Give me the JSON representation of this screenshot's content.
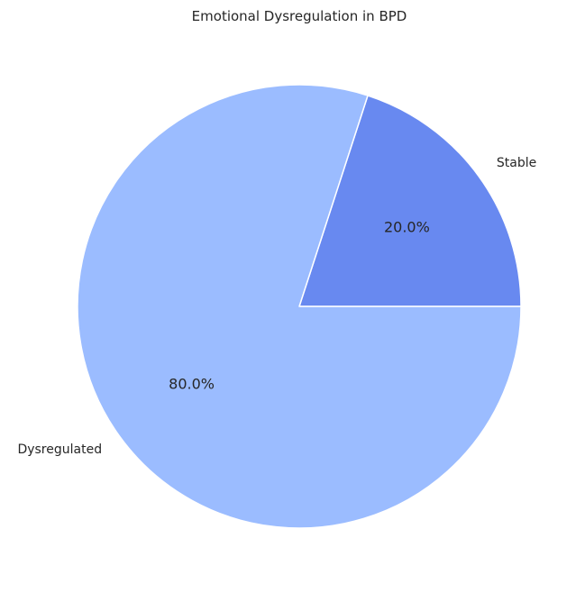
{
  "chart_data": {
    "type": "pie",
    "title": "Emotional Dysregulation in BPD",
    "start_angle_deg": 0,
    "direction": "counterclockwise",
    "slices": [
      {
        "label": "Stable",
        "value": 20.0,
        "pct_label": "20.0%",
        "color": "#6889f0"
      },
      {
        "label": "Dysregulated",
        "value": 80.0,
        "pct_label": "80.0%",
        "color": "#9bbcff"
      }
    ],
    "edge_color": "#ffffff"
  }
}
